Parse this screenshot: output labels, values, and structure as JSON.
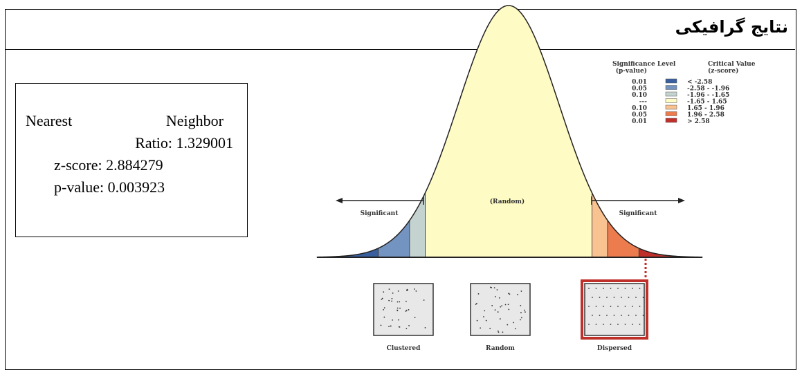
{
  "header": {
    "title": "نتایج گرافیکی"
  },
  "stats": {
    "line1a": "Nearest",
    "line1b": "Neighbor",
    "line2": "Ratio: 1.329001",
    "line3": "z-score: 2.884279",
    "line4": "p-value: 0.003923"
  },
  "figure": {
    "legend": {
      "head1": "Significance Level",
      "head1b": "(p-value)",
      "head2": "Critical Value",
      "head2b": "(z-score)",
      "rows": [
        [
          "0.01",
          "< -2.58"
        ],
        [
          "0.05",
          "-2.58 - -1.96"
        ],
        [
          "0.10",
          "-1.96 - -1.65"
        ],
        [
          "---",
          "-1.65 - 1.65"
        ],
        [
          "0.10",
          "1.65 - 1.96"
        ],
        [
          "0.05",
          "1.96 - 2.58"
        ],
        [
          "0.01",
          "> 2.58"
        ]
      ]
    },
    "left_label": "Significant",
    "center_label": "(Random)",
    "right_label": "Significant",
    "patterns": [
      "Clustered",
      "Random",
      "Dispersed"
    ]
  }
}
